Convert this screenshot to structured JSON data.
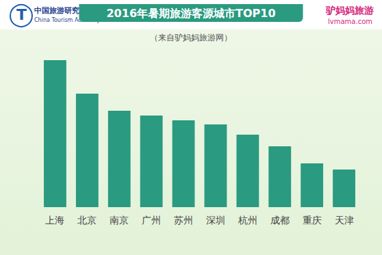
{
  "chart_data": {
    "type": "bar",
    "title": "2016年暑期旅游客源城市TOP10",
    "subtitle": "（来自驴妈妈旅游网）",
    "annotations": [
      "中国旅游研究院",
      "China Tourism Academy",
      "驴妈妈旅游",
      "lvmama.com"
    ],
    "categories": [
      "上海",
      "北京",
      "南京",
      "广州",
      "苏州",
      "深圳",
      "杭州",
      "成都",
      "重庆",
      "天津"
    ],
    "values": [
      215,
      166,
      141,
      134,
      127,
      121,
      106,
      89,
      64,
      55
    ],
    "color": "#2a9a80",
    "ylim": [
      0,
      220
    ],
    "grid": false,
    "tick_labels": "x"
  }
}
